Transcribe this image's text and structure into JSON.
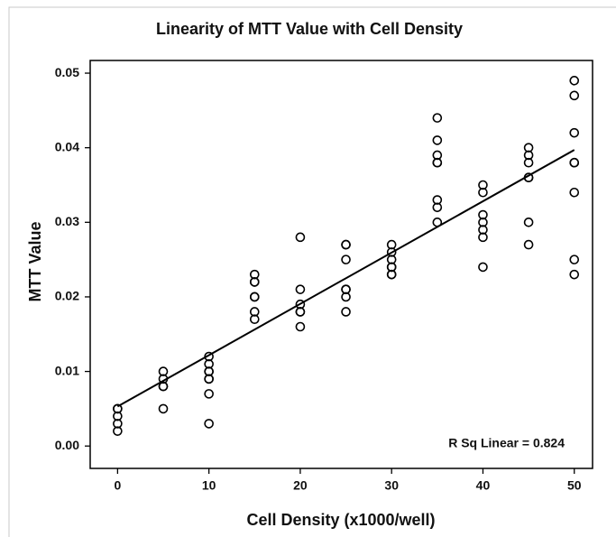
{
  "chart_data": {
    "type": "scatter",
    "title": "Linearity of MTT Value with Cell Density",
    "x_label": "Cell Density (x1000/well)",
    "y_label": "MTT Value",
    "annotation": "R Sq Linear = 0.824",
    "color": "#000000",
    "x": [
      0,
      0,
      0,
      0,
      0,
      5,
      5,
      5,
      5,
      5,
      10,
      10,
      10,
      10,
      10,
      10,
      10,
      10,
      15,
      15,
      15,
      15,
      15,
      15,
      15,
      20,
      20,
      20,
      20,
      20,
      20,
      25,
      25,
      25,
      25,
      25,
      25,
      25,
      30,
      30,
      30,
      30,
      30,
      30,
      30,
      35,
      35,
      35,
      35,
      35,
      35,
      35,
      35,
      40,
      40,
      40,
      40,
      40,
      40,
      40,
      45,
      45,
      45,
      45,
      45,
      45,
      45,
      50,
      50,
      50,
      50,
      50,
      50,
      50,
      50
    ],
    "values": [
      0.005,
      0.005,
      0.004,
      0.003,
      0.002,
      0.01,
      0.009,
      0.008,
      0.008,
      0.005,
      0.012,
      0.011,
      0.01,
      0.01,
      0.009,
      0.009,
      0.007,
      0.003,
      0.023,
      0.022,
      0.022,
      0.02,
      0.02,
      0.018,
      0.017,
      0.028,
      0.021,
      0.019,
      0.018,
      0.018,
      0.016,
      0.027,
      0.027,
      0.025,
      0.021,
      0.021,
      0.02,
      0.018,
      0.027,
      0.026,
      0.025,
      0.024,
      0.024,
      0.023,
      0.023,
      0.044,
      0.041,
      0.039,
      0.038,
      0.038,
      0.033,
      0.032,
      0.03,
      0.035,
      0.034,
      0.031,
      0.03,
      0.029,
      0.028,
      0.024,
      0.04,
      0.039,
      0.038,
      0.036,
      0.036,
      0.03,
      0.027,
      0.049,
      0.047,
      0.042,
      0.038,
      0.038,
      0.034,
      0.025,
      0.023
    ],
    "fit_line": {
      "x": [
        0,
        50
      ],
      "y": [
        0.0053,
        0.0397
      ]
    },
    "xlim": [
      -3,
      52
    ],
    "ylim": [
      -0.003,
      0.0517
    ],
    "xticks": [
      0,
      10,
      20,
      30,
      40,
      50
    ],
    "yticks": [
      {
        "value": 0,
        "label": "0.00"
      },
      0.01,
      0.02,
      0.03,
      0.04,
      0.05
    ]
  }
}
